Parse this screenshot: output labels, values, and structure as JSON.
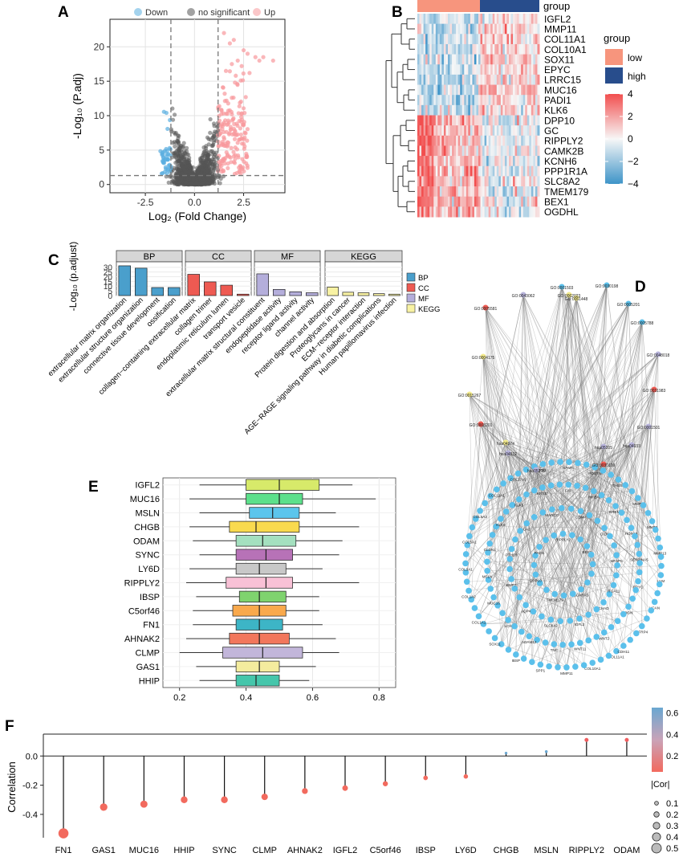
{
  "panel_labels": [
    "A",
    "B",
    "C",
    "D",
    "E",
    "F"
  ],
  "colors": {
    "down": "#5AAEE0",
    "ns": "#555555",
    "up": "#F8999C",
    "bp": "#4A9FCC",
    "cc": "#EE5A52",
    "mf": "#B4AEDB",
    "kegg": "#F8F2A3",
    "low": "#F7957D",
    "high": "#284D8C",
    "network_node": "#5BC0EB"
  },
  "chart_data": [
    {
      "id": "A",
      "type": "scatter",
      "xlabel": "Log₂ (Fold Change)",
      "ylabel": "-Log₁₀ (P.adj)",
      "xlim": [
        -4.3,
        4.6
      ],
      "ylim": [
        -1.2,
        24
      ],
      "xticks": [
        -2.5,
        0.0,
        2.5
      ],
      "xtick_labels": [
        "-2.5",
        "0.0",
        "2.5"
      ],
      "yticks": [
        0,
        5,
        10,
        15,
        20
      ],
      "ytick_labels": [
        "0",
        "5",
        "10",
        "15",
        "20"
      ],
      "thresholds": {
        "fc": 1.2,
        "p": 1.3
      },
      "legend": [
        {
          "key": "down",
          "label": "Down"
        },
        {
          "key": "ns",
          "label": "no significant"
        },
        {
          "key": "up",
          "label": "Up"
        }
      ],
      "highlight_up": [
        [
          1.5,
          22
        ],
        [
          1.8,
          20.5
        ],
        [
          2.0,
          21
        ],
        [
          2.5,
          19.5
        ],
        [
          2.7,
          19
        ],
        [
          3.1,
          18.5
        ],
        [
          3.3,
          18
        ],
        [
          3.5,
          18.5
        ],
        [
          4.0,
          18
        ],
        [
          2.2,
          18
        ],
        [
          1.9,
          17.5
        ],
        [
          2.4,
          17.2
        ],
        [
          1.6,
          16.5
        ],
        [
          2.8,
          16.2
        ],
        [
          2.1,
          15.8
        ]
      ]
    },
    {
      "id": "B",
      "type": "heatmap",
      "genes": [
        "IGFL2",
        "MMP11",
        "COL11A1",
        "COL10A1",
        "SOX11",
        "EPYC",
        "LRRC15",
        "MUC16",
        "PADI1",
        "KLK6",
        "DPP10",
        "GC",
        "RIPPLY2",
        "CAMK2B",
        "KCNH6",
        "PPP1R1A",
        "SLC8A2",
        "TMEM179",
        "BEX1",
        "OGDHL"
      ],
      "group_title": "group",
      "group_levels": [
        "low",
        "high"
      ],
      "scale_ticks": [
        4,
        2,
        0,
        -2,
        -4
      ],
      "scale_labels": [
        "4",
        "2",
        "0",
        "−2",
        "−4"
      ]
    },
    {
      "id": "C",
      "type": "bar",
      "ylabel": "-Log₁₀ (p.adjust)",
      "yticks": [
        0,
        5,
        10,
        15,
        20,
        25,
        30
      ],
      "ytick_labels": [
        "0",
        "5",
        "10",
        "15",
        "20",
        "25",
        "30"
      ],
      "ylim": [
        0,
        34
      ],
      "legend": [
        {
          "key": "bp",
          "label": "BP"
        },
        {
          "key": "cc",
          "label": "CC"
        },
        {
          "key": "mf",
          "label": "MF"
        },
        {
          "key": "kegg",
          "label": "KEGG"
        }
      ],
      "facets": [
        {
          "name": "BP",
          "key": "bp",
          "categories": [
            "extracellular matrix organization",
            "extracellular structure organization",
            "connective tissue development",
            "ossification"
          ],
          "values": [
            31.5,
            29,
            8.5,
            8.5
          ]
        },
        {
          "name": "CC",
          "key": "cc",
          "categories": [
            "collagen−containing extracellular matrix",
            "collagen trimer",
            "endoplasmic reticulum lumen",
            "transport vesicle"
          ],
          "values": [
            22.5,
            14.5,
            11,
            1.5
          ]
        },
        {
          "name": "MF",
          "key": "mf",
          "categories": [
            "extracellular matrix structural constituent",
            "endopeptidase activity",
            "receptor ligand activity",
            "channel activity"
          ],
          "values": [
            23,
            6.5,
            4,
            3
          ]
        },
        {
          "name": "KEGG",
          "key": "kegg",
          "categories": [
            "Protein digestion and absorption",
            "Proteoglycans in cancer",
            "ECM−receptor interaction",
            "AGE−RAGE signaling pathway in diabetic complications",
            "Human papillomavirus infection"
          ],
          "values": [
            9,
            3.5,
            3,
            2,
            1.5
          ]
        }
      ]
    },
    {
      "id": "D",
      "type": "network",
      "go_nodes": [
        "GO:0030198",
        "GO:0001503",
        "GO:0043062",
        "GO:0061448",
        "GO:0005201",
        "GO:0062023",
        "GO:0005581",
        "GO:0005788",
        "GO:0004175",
        "GO:0048018",
        "GO:0015267",
        "GO:0031983",
        "GO:0008201",
        "GO:0001501",
        "hsa04974",
        "hsa05205",
        "hsa04512",
        "hsa04933",
        "hsa05165",
        "GO:0030199"
      ],
      "gene_nodes": [
        "COL11A1",
        "COL10A1",
        "MMP11",
        "SPP1",
        "IBSP",
        "SOX11",
        "COL1A1",
        "COL1A2",
        "COL3A1",
        "COL5A1",
        "COL5A2",
        "COL12A1",
        "COL17A1",
        "FN1",
        "SPARC",
        "POSTN",
        "THBS2",
        "MMP1",
        "MMP9",
        "MMP13",
        "LUM",
        "VCAN",
        "SFRP4",
        "CDH11",
        "WNT2",
        "WNT11",
        "TNC",
        "ADAM12",
        "LOX",
        "MUC16",
        "MSLN",
        "CLDN1",
        "KLK6",
        "KLK5",
        "KRT17",
        "FAP",
        "INHBA",
        "GREM1",
        "HOXA9",
        "SERPINA5",
        "EPYC",
        "OGN",
        "CHAD",
        "IGFL2",
        "SLC8A2",
        "AQP4",
        "BMP7",
        "PTH1R",
        "CA2",
        "MARCO",
        "COMP",
        "CILP",
        "MFAP5",
        "ITGA11",
        "SCARA5",
        "TMEM179",
        "DPP10",
        "PADI1",
        "RIPPLY2",
        "BEX1"
      ]
    },
    {
      "id": "E",
      "type": "boxplot",
      "xlim": [
        0.15,
        0.85
      ],
      "xticks": [
        0.2,
        0.4,
        0.6,
        0.8
      ],
      "xtick_labels": [
        "0.2",
        "0.4",
        "0.6",
        "0.8"
      ],
      "series": [
        {
          "name": "IGFL2",
          "color": "#D7EA6A",
          "min": 0.26,
          "q1": 0.4,
          "median": 0.5,
          "q3": 0.62,
          "max": 0.72
        },
        {
          "name": "MUC16",
          "color": "#5CE08B",
          "min": 0.23,
          "q1": 0.4,
          "median": 0.5,
          "q3": 0.57,
          "max": 0.79
        },
        {
          "name": "MSLN",
          "color": "#5BC5EC",
          "min": 0.26,
          "q1": 0.41,
          "median": 0.48,
          "q3": 0.56,
          "max": 0.67
        },
        {
          "name": "CHGB",
          "color": "#F9DA4E",
          "min": 0.23,
          "q1": 0.35,
          "median": 0.43,
          "q3": 0.56,
          "max": 0.74
        },
        {
          "name": "ODAM",
          "color": "#A4E0BF",
          "min": 0.24,
          "q1": 0.37,
          "median": 0.45,
          "q3": 0.55,
          "max": 0.69
        },
        {
          "name": "SYNC",
          "color": "#B772B7",
          "min": 0.26,
          "q1": 0.37,
          "median": 0.46,
          "q3": 0.54,
          "max": 0.68
        },
        {
          "name": "LY6D",
          "color": "#C8C8C8",
          "min": 0.23,
          "q1": 0.37,
          "median": 0.44,
          "q3": 0.52,
          "max": 0.63
        },
        {
          "name": "RIPPLY2",
          "color": "#F8C1D6",
          "min": 0.22,
          "q1": 0.34,
          "median": 0.46,
          "q3": 0.54,
          "max": 0.74
        },
        {
          "name": "IBSP",
          "color": "#7FD36E",
          "min": 0.25,
          "q1": 0.38,
          "median": 0.44,
          "q3": 0.52,
          "max": 0.62
        },
        {
          "name": "C5orf46",
          "color": "#F9A94C",
          "min": 0.24,
          "q1": 0.36,
          "median": 0.44,
          "q3": 0.52,
          "max": 0.62
        },
        {
          "name": "FN1",
          "color": "#3DB5C6",
          "min": 0.24,
          "q1": 0.37,
          "median": 0.44,
          "q3": 0.51,
          "max": 0.63
        },
        {
          "name": "AHNAK2",
          "color": "#F2775C",
          "min": 0.22,
          "q1": 0.35,
          "median": 0.44,
          "q3": 0.53,
          "max": 0.67
        },
        {
          "name": "CLMP",
          "color": "#C2B6DA",
          "min": 0.2,
          "q1": 0.33,
          "median": 0.45,
          "q3": 0.57,
          "max": 0.68
        },
        {
          "name": "GAS1",
          "color": "#F4EC9E",
          "min": 0.25,
          "q1": 0.37,
          "median": 0.44,
          "q3": 0.5,
          "max": 0.61
        },
        {
          "name": "HHIP",
          "color": "#45C6AB",
          "min": 0.26,
          "q1": 0.37,
          "median": 0.43,
          "q3": 0.5,
          "max": 0.59
        }
      ]
    },
    {
      "id": "F",
      "type": "lollipop",
      "ylabel": "Correlation",
      "ylim": [
        -0.56,
        0.15
      ],
      "yticks": [
        -0.4,
        -0.2,
        0.0
      ],
      "ytick_labels": [
        "-0.4",
        "-0.2",
        "0.0"
      ],
      "categories": [
        "FN1",
        "GAS1",
        "MUC16",
        "HHIP",
        "SYNC",
        "CLMP",
        "AHNAK2",
        "IGFL2",
        "C5orf46",
        "IBSP",
        "LY6D",
        "CHGB",
        "MSLN",
        "RIPPLY2",
        "ODAM"
      ],
      "values": [
        -0.53,
        -0.35,
        -0.33,
        -0.3,
        -0.3,
        -0.28,
        -0.24,
        -0.22,
        -0.19,
        -0.15,
        -0.14,
        0.02,
        0.03,
        0.11,
        0.11
      ],
      "colorbar_ticks": [
        0.6,
        0.4,
        0.2
      ],
      "colorbar_labels": [
        "0.6",
        "0.4",
        "0.2"
      ],
      "size_legend_title": "|Cor|",
      "size_legend": [
        0.1,
        0.2,
        0.3,
        0.4,
        0.5
      ],
      "size_legend_labels": [
        "0.1",
        "0.2",
        "0.3",
        "0.4",
        "0.5"
      ]
    }
  ]
}
